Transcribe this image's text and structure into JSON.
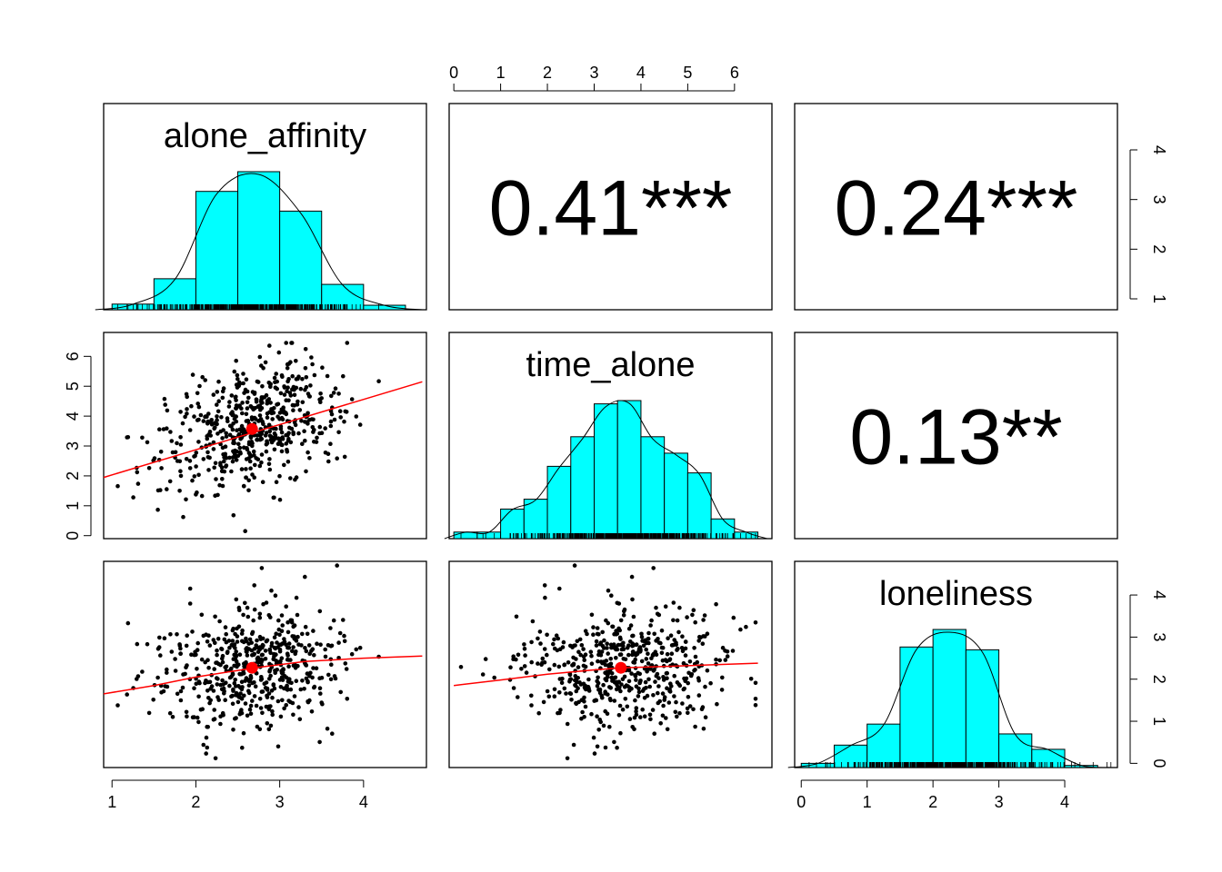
{
  "chart_data": {
    "type": "scatter-matrix",
    "title": "",
    "variables": [
      "alone_affinity",
      "time_alone",
      "loneliness"
    ],
    "correlations": [
      {
        "row": 0,
        "col": 1,
        "pair": [
          "alone_affinity",
          "time_alone"
        ],
        "label": "0.41***"
      },
      {
        "row": 0,
        "col": 2,
        "pair": [
          "alone_affinity",
          "loneliness"
        ],
        "label": "0.24***"
      },
      {
        "row": 1,
        "col": 2,
        "pair": [
          "time_alone",
          "loneliness"
        ],
        "label": "0.13**"
      }
    ],
    "axis_ranges": {
      "alone_affinity": [
        0.9,
        4.75
      ],
      "time_alone": [
        -0.1,
        6.8
      ],
      "loneliness": [
        -0.1,
        4.8
      ]
    },
    "ticks": {
      "alone_affinity": [
        "1",
        "2",
        "3",
        "4"
      ],
      "time_alone": [
        "0",
        "1",
        "2",
        "3",
        "4",
        "5",
        "6"
      ],
      "loneliness": [
        "0",
        "1",
        "2",
        "3",
        "4"
      ],
      "loneliness_hist_top": [
        "0",
        "1",
        "2",
        "3",
        "4"
      ]
    },
    "means": {
      "alone_affinity": 2.67,
      "time_alone": 3.57,
      "loneliness": 2.27
    },
    "histograms": {
      "alone_affinity": {
        "bin_edges": [
          1.0,
          1.5,
          2.0,
          2.5,
          3.0,
          3.5,
          4.0,
          4.5
        ],
        "heights": [
          0.1,
          0.55,
          2.1,
          2.45,
          1.75,
          0.45,
          0.08
        ]
      },
      "time_alone": {
        "bin_edges": [
          0.0,
          0.5,
          1.0,
          1.5,
          2.0,
          2.5,
          3.0,
          3.5,
          4.0,
          4.5,
          5.0,
          5.5,
          6.0,
          6.5
        ],
        "heights": [
          0.02,
          0.02,
          0.09,
          0.12,
          0.22,
          0.31,
          0.41,
          0.42,
          0.31,
          0.26,
          0.2,
          0.06,
          0.02
        ]
      },
      "loneliness": {
        "bin_edges": [
          0.0,
          0.5,
          1.0,
          1.5,
          2.0,
          2.5,
          3.0,
          3.5,
          4.0,
          4.5
        ],
        "heights": [
          0.06,
          0.32,
          0.62,
          1.72,
          1.97,
          1.68,
          0.48,
          0.26,
          0.03
        ]
      }
    },
    "fit_lines": {
      "alone_affinity__time_alone": {
        "x": [
          0.9,
          4.7
        ],
        "y": [
          1.95,
          5.15
        ]
      },
      "alone_affinity__loneliness": {
        "x": [
          0.9,
          1.5,
          2.0,
          2.7,
          3.3,
          4.0,
          4.7
        ],
        "y": [
          1.65,
          1.85,
          2.05,
          2.27,
          2.42,
          2.5,
          2.55
        ]
      },
      "time_alone__loneliness": {
        "x": [
          0.0,
          1.0,
          2.0,
          3.0,
          3.57,
          4.5,
          6.5
        ],
        "y": [
          1.85,
          1.98,
          2.12,
          2.22,
          2.27,
          2.3,
          2.38
        ]
      }
    },
    "point_color": "#000000",
    "hist_fill": "#00FFFF",
    "fit_color": "#FF0000",
    "grid": false,
    "legend": "none"
  }
}
